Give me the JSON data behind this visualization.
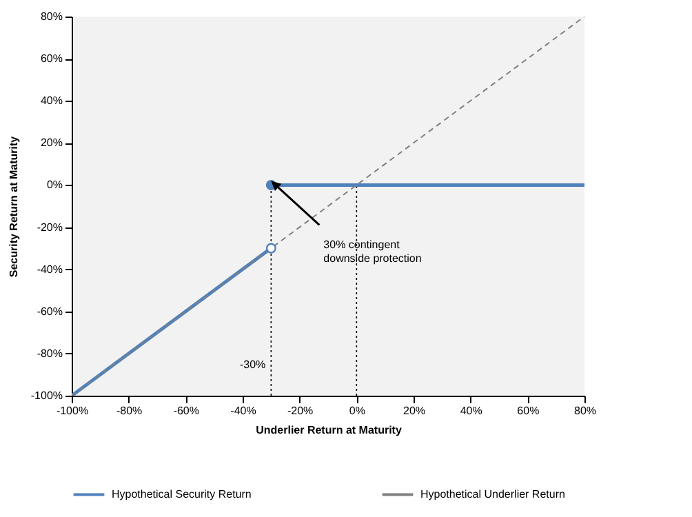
{
  "chart_data": {
    "type": "line",
    "xlabel": "Underlier Return at Maturity",
    "ylabel": "Security Return at Maturity",
    "xlim": [
      -100,
      80
    ],
    "xticks": [
      {
        "value": -100,
        "label": "-100%"
      },
      {
        "value": -80,
        "label": "-80%"
      },
      {
        "value": -60,
        "label": "-60%"
      },
      {
        "value": -40,
        "label": "-40%"
      },
      {
        "value": -20,
        "label": "-20%"
      },
      {
        "value": 0,
        "label": "0%"
      },
      {
        "value": 20,
        "label": "20%"
      },
      {
        "value": 40,
        "label": "40%"
      },
      {
        "value": 60,
        "label": "60%"
      },
      {
        "value": 80,
        "label": "80%"
      }
    ],
    "ylim": [
      -100,
      80
    ],
    "yticks": [
      {
        "value": -100,
        "label": "-100%"
      },
      {
        "value": -80,
        "label": "-80%"
      },
      {
        "value": -60,
        "label": "-60%"
      },
      {
        "value": -40,
        "label": "-40%"
      },
      {
        "value": -20,
        "label": "-20%"
      },
      {
        "value": 0,
        "label": "0%"
      },
      {
        "value": 20,
        "label": "20%"
      },
      {
        "value": 40,
        "label": "40%"
      },
      {
        "value": 60,
        "label": "60%"
      },
      {
        "value": 80,
        "label": "80%"
      }
    ],
    "series": [
      {
        "name": "Hypothetical Security Return",
        "color": "#4f81bd",
        "x": [
          -100,
          -30,
          -30,
          80
        ],
        "values": [
          -100,
          -30,
          0,
          0
        ],
        "marker": "circle",
        "line_style": "solid"
      },
      {
        "name": "Hypothetical Underlier Return",
        "color": "#808080",
        "x": [
          -100,
          80
        ],
        "values": [
          -100,
          80
        ],
        "marker": "none",
        "line_style": "dashed"
      }
    ],
    "ref_lines": [
      {
        "axis": "x",
        "value": -30,
        "label": "-30%",
        "line_style": "dotted"
      },
      {
        "axis": "x",
        "value": 0,
        "line_style": "dotted"
      }
    ],
    "annotations": [
      "30% contingent downside protection"
    ],
    "grid": false,
    "legend": "bottom"
  }
}
